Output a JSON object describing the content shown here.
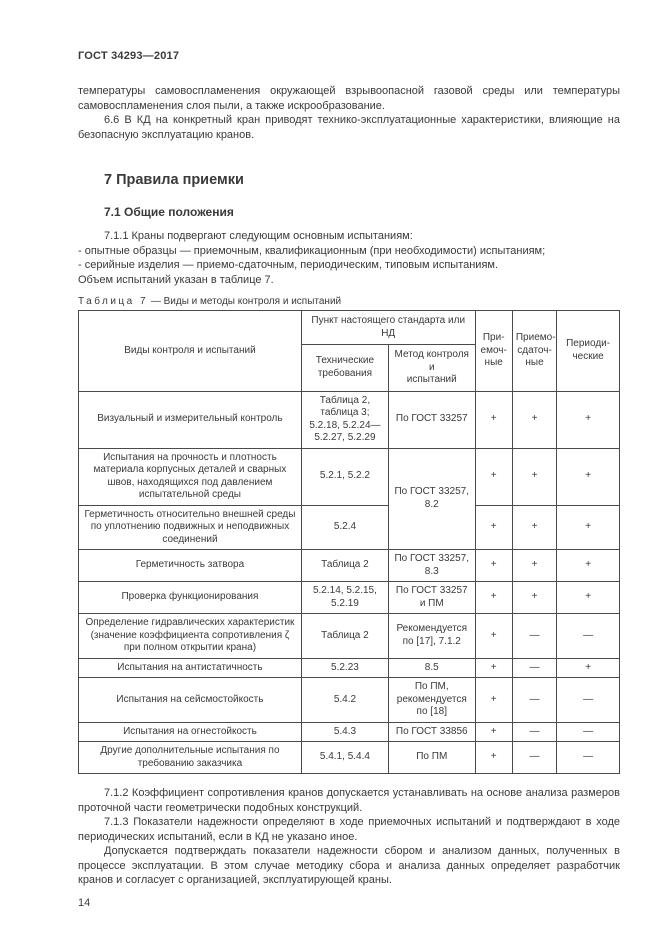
{
  "doc": {
    "header": "ГОСТ 34293—2017",
    "page_number": "14"
  },
  "intro": {
    "p_continuation": "температуры самовоспламенения окружающей взрывоопасной газовой среды или температуры самовоспламенения слоя пыли, а также искрообразование.",
    "p_6_6": "6.6 В КД на конкретный кран приводят технико-эксплуатационные характеристики, влияющие на безопасную эксплуатацию кранов."
  },
  "section7": {
    "title": "7 Правила приемки",
    "subsection_title": "7.1 Общие положения",
    "p_7_1_1": "7.1.1 Краны подвергают следующим основным испытаниям:",
    "list_item_1": "- опытные образцы — приемочным, квалификационным (при необходимости) испытаниям;",
    "list_item_2": "- серийные изделия — приемо-сдаточным, периодическим, типовым испытаниям.",
    "p_volume": "Объем испытаний указан в таблице 7."
  },
  "table7": {
    "caption_label": "Таблица 7",
    "caption_rest": " — Виды и методы контроля и испытаний",
    "head": {
      "types": "Виды контроля и испытаний",
      "group": "Пункт настоящего стандарта или НД",
      "tech": "Технические\nтребования",
      "method": "Метод контроля и\nиспытаний",
      "acceptance": "При-\nемоч-\nные",
      "handover": "Приемо-\nсдаточ-\nные",
      "periodic": "Периоди-\nческие"
    },
    "rows": [
      {
        "name": "Визуальный и измерительный контроль",
        "tech": "Таблица 2, таблица 3; 5.2.18, 5.2.24—5.2.27, 5.2.29",
        "method": "По ГОСТ 33257",
        "acc": "+",
        "hand": "+",
        "per": "+"
      },
      {
        "name": "Испытания на прочность и плотность материала корпусных деталей и сварных швов, находящихся под давлением испытательной среды",
        "tech": "5.2.1, 5.2.2",
        "method": "По ГОСТ 33257, 8.2",
        "acc": "+",
        "hand": "+",
        "per": "+"
      },
      {
        "name": "Герметичность относительно внешней среды по уплотнению подвижных и неподвижных соединений",
        "tech": "5.2.4",
        "acc": "+",
        "hand": "+",
        "per": "+"
      },
      {
        "name": "Герметичность затвора",
        "tech": "Таблица 2",
        "method": "По ГОСТ 33257, 8.3",
        "acc": "+",
        "hand": "+",
        "per": "+"
      },
      {
        "name": "Проверка функционирования",
        "tech": "5.2.14, 5.2.15, 5.2.19",
        "method": "По ГОСТ 33257 и ПМ",
        "acc": "+",
        "hand": "+",
        "per": "+"
      },
      {
        "name": "Определение гидравлических характеристик (значение коэффициента сопротивления ζ при полном открытии крана)",
        "tech": "Таблица 2",
        "method": "Рекомендуется по [17], 7.1.2",
        "acc": "+",
        "hand": "—",
        "per": "—"
      },
      {
        "name": "Испытания на антистатичность",
        "tech": "5.2.23",
        "method": "8.5",
        "acc": "+",
        "hand": "—",
        "per": "+"
      },
      {
        "name": "Испытания на сейсмостойкость",
        "tech": "5.4.2",
        "method": "По ПМ, рекомендуется по [18]",
        "acc": "+",
        "hand": "—",
        "per": "—"
      },
      {
        "name": "Испытания на огнестойкость",
        "tech": "5.4.3",
        "method": "По ГОСТ 33856",
        "acc": "+",
        "hand": "—",
        "per": "—"
      },
      {
        "name": "Другие дополнительные испытания по требованию заказчика",
        "tech": "5.4.1, 5.4.4",
        "method": "По ПМ",
        "acc": "+",
        "hand": "—",
        "per": "—"
      }
    ]
  },
  "outro": {
    "p_7_1_2": "7.1.2 Коэффициент сопротивления кранов допускается устанавливать на основе анализа размеров проточной части геометрически подобных конструкций.",
    "p_7_1_3": "7.1.3 Показатели надежности определяют в ходе приемочных испытаний и подтверждают в ходе периодических испытаний, если в КД не указано иное.",
    "p_7_1_3b": "Допускается подтверждать показатели надежности сбором и анализом данных, полученных в процессе эксплуатации. В этом случае методику сбора и анализа данных определяет разработчик кранов и согласует с организацией, эксплуатирующей краны."
  }
}
